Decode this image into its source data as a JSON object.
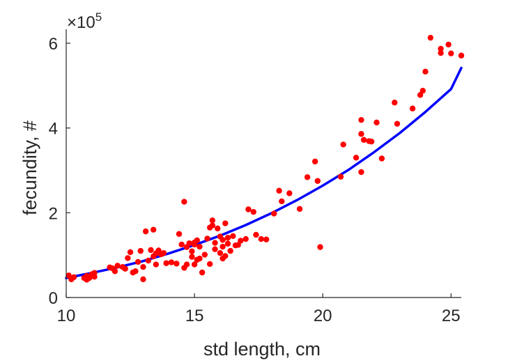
{
  "chart_data": {
    "type": "scatter",
    "title": "",
    "xlabel": "std length, cm",
    "ylabel": "fecundity, #",
    "xlim": [
      10,
      25.4
    ],
    "ylim": [
      0,
      6.1
    ],
    "y_multiplier": "×10",
    "y_multiplier_exp": "5",
    "xticks": [
      10,
      15,
      20,
      25
    ],
    "yticks": [
      0,
      2,
      4,
      6
    ],
    "grid": false,
    "legend": "none",
    "colors": {
      "points": "#ff0000",
      "fit": "#0000ff",
      "axis": "#262626"
    },
    "series": [
      {
        "kind": "points",
        "x": [
          10.1,
          10.2,
          10.3,
          10.7,
          10.8,
          10.8,
          10.9,
          11.0,
          11.1,
          11.1,
          11.7,
          11.8,
          11.9,
          12.0,
          12.2,
          12.3,
          12.4,
          12.5,
          12.6,
          12.7,
          12.8,
          12.9,
          13.0,
          13.0,
          13.1,
          13.2,
          13.3,
          13.4,
          13.4,
          13.5,
          13.5,
          13.6,
          13.7,
          13.8,
          13.9,
          14.1,
          14.3,
          14.4,
          14.5,
          14.6,
          14.6,
          14.7,
          14.7,
          14.8,
          14.9,
          14.9,
          15.0,
          15.0,
          15.0,
          15.1,
          15.1,
          15.2,
          15.2,
          15.3,
          15.4,
          15.5,
          15.6,
          15.6,
          15.7,
          15.7,
          15.8,
          15.8,
          15.9,
          16.0,
          16.0,
          16.1,
          16.1,
          16.1,
          16.2,
          16.2,
          16.3,
          16.3,
          16.4,
          16.5,
          16.6,
          16.7,
          16.8,
          17.0,
          17.1,
          17.3,
          17.4,
          17.6,
          17.8,
          18.1,
          18.3,
          18.4,
          18.7,
          19.1,
          19.4,
          19.7,
          19.8,
          19.9,
          20.7,
          20.8,
          21.3,
          21.5,
          21.5,
          21.5,
          21.6,
          21.8,
          21.9,
          22.1,
          22.3,
          22.8,
          22.9,
          23.5,
          23.8,
          23.9,
          24.0,
          24.2,
          24.6,
          24.6,
          24.9,
          25.0,
          25.4
        ],
        "y": [
          0.52,
          0.43,
          0.48,
          0.46,
          0.42,
          0.51,
          0.46,
          0.55,
          0.49,
          0.58,
          0.71,
          0.69,
          0.62,
          0.75,
          0.72,
          0.68,
          0.93,
          1.07,
          0.59,
          0.62,
          0.84,
          1.1,
          0.72,
          0.43,
          1.56,
          0.87,
          1.12,
          0.97,
          1.6,
          0.78,
          1.04,
          1.11,
          1.02,
          1.05,
          0.81,
          0.83,
          0.8,
          1.5,
          1.25,
          2.26,
          0.7,
          0.78,
          1.19,
          1.28,
          0.96,
          1.09,
          1.3,
          1.25,
          0.78,
          0.89,
          1.35,
          0.92,
          1.2,
          0.59,
          1.01,
          1.39,
          1.65,
          0.79,
          1.82,
          1.7,
          1.14,
          1.29,
          1.63,
          1.05,
          1.44,
          0.92,
          1.2,
          1.36,
          0.98,
          1.75,
          1.27,
          1.41,
          1.1,
          1.45,
          1.23,
          1.24,
          1.34,
          1.38,
          2.08,
          2.02,
          1.48,
          1.38,
          1.37,
          1.98,
          2.52,
          2.27,
          2.46,
          2.09,
          2.84,
          3.21,
          2.75,
          1.19,
          2.85,
          3.61,
          3.3,
          2.96,
          3.86,
          4.19,
          3.72,
          3.69,
          3.68,
          4.13,
          3.28,
          4.6,
          4.1,
          4.46,
          4.78,
          4.88,
          5.33,
          6.13,
          5.77,
          5.87,
          5.97,
          5.76,
          5.71
        ]
      },
      {
        "kind": "line",
        "x": [
          10,
          11,
          12,
          13,
          14,
          15,
          16,
          17,
          18,
          19,
          20,
          21,
          22,
          23,
          24,
          25,
          25.4
        ],
        "y": [
          0.46,
          0.58,
          0.71,
          0.86,
          1.04,
          1.24,
          1.46,
          1.71,
          1.99,
          2.3,
          2.64,
          3.01,
          3.43,
          3.88,
          4.38,
          4.92,
          5.42
        ]
      }
    ]
  }
}
